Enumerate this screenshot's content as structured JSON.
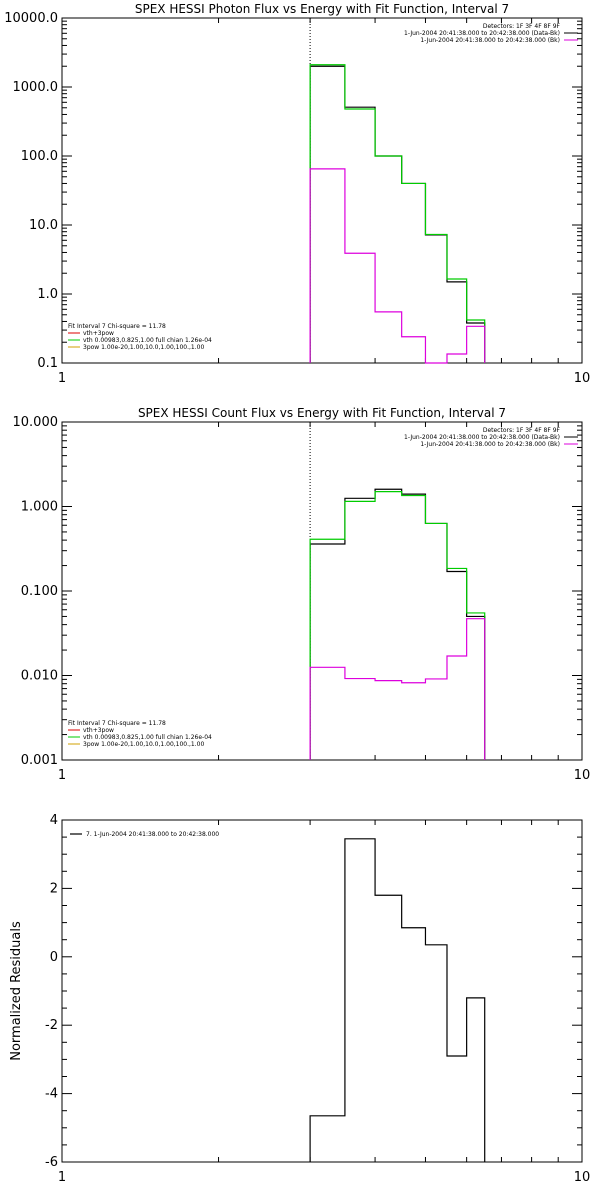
{
  "chart_data": [
    {
      "type": "line",
      "title": "SPEX HESSI Photon Flux vs Energy with Fit Function, Interval 7",
      "xscale": "log",
      "yscale": "log",
      "xlim": [
        1,
        10
      ],
      "ylim": [
        0.1,
        10000
      ],
      "x_ticks": [
        {
          "v": 1,
          "label": "1"
        },
        {
          "v": 10,
          "label": "10"
        }
      ],
      "y_ticks": [
        {
          "v": 0.1,
          "label": "0.1"
        },
        {
          "v": 1,
          "label": "1.0"
        },
        {
          "v": 10,
          "label": "10.0"
        },
        {
          "v": 100,
          "label": "100.0"
        },
        {
          "v": 1000,
          "label": "1000.0"
        },
        {
          "v": 10000,
          "label": "10000.0"
        }
      ],
      "vline_x": 3.0,
      "header_lines": [
        "Detectors: 1F 3F 4F 8F 9F",
        "1-Jun-2004 20:41:38.000 to 20:42:38.000 (Data-Bk)",
        "1-Jun-2004 20:41:38.000 to 20:42:38.000 (Bk)"
      ],
      "header_colors": [
        "",
        "#000000",
        "#dd00dd"
      ],
      "legend": {
        "title": "Fit Interval  7    Chi-square = 11.78",
        "items": [
          {
            "label": "vth+3pow",
            "color": "#dd0000"
          },
          {
            "label": "vth 0.00983,0.825,1.00   full chian 1.26e-04",
            "color": "#00cc00"
          },
          {
            "label": "3pow 1.00e-20,1.00,10.0,1.00,100.,1.00",
            "color": "#d0a000"
          }
        ]
      },
      "series": [
        {
          "color": "#000000",
          "edges": [
            3.0,
            3.5,
            4.0,
            4.5,
            5.0,
            5.5,
            6.0,
            6.5
          ],
          "values": [
            2000,
            510,
            100,
            40,
            7.2,
            1.5,
            0.38
          ]
        },
        {
          "color": "#00cc00",
          "edges": [
            3.0,
            3.5,
            4.0,
            4.5,
            5.0,
            5.5,
            6.0,
            6.5
          ],
          "values": [
            2100,
            480,
            100,
            40,
            7.3,
            1.65,
            0.42
          ]
        },
        {
          "color": "#dd00dd",
          "edges": [
            3.0,
            3.5,
            4.0,
            4.5,
            5.0,
            5.5,
            6.0,
            6.5
          ],
          "values": [
            65,
            3.9,
            0.55,
            0.24,
            0.09,
            0.135,
            0.34
          ]
        }
      ]
    },
    {
      "type": "line",
      "title": "SPEX HESSI Count Flux vs Energy with Fit Function, Interval 7",
      "xscale": "log",
      "yscale": "log",
      "xlim": [
        1,
        10
      ],
      "ylim": [
        0.001,
        10
      ],
      "x_ticks": [
        {
          "v": 1,
          "label": "1"
        },
        {
          "v": 10,
          "label": "10"
        }
      ],
      "y_ticks": [
        {
          "v": 0.001,
          "label": "0.001"
        },
        {
          "v": 0.01,
          "label": "0.010"
        },
        {
          "v": 0.1,
          "label": "0.100"
        },
        {
          "v": 1,
          "label": "1.000"
        },
        {
          "v": 10,
          "label": "10.000"
        }
      ],
      "vline_x": 3.0,
      "header_lines": [
        "Detectors: 1F 3F 4F 8F 9F",
        "1-Jun-2004 20:41:38.000 to 20:42:38.000 (Data-Bk)",
        "1-Jun-2004 20:41:38.000 to 20:42:38.000 (Bk)"
      ],
      "header_colors": [
        "",
        "#000000",
        "#dd00dd"
      ],
      "legend": {
        "title": "Fit Interval  7    Chi-square = 11.78",
        "items": [
          {
            "label": "vth+3pow",
            "color": "#dd0000"
          },
          {
            "label": "vth 0.00983,0.825,1.00   full chian 1.26e-04",
            "color": "#00cc00"
          },
          {
            "label": "3pow 1.00e-20,1.00,10.0,1.00,100.,1.00",
            "color": "#d0a000"
          }
        ]
      },
      "series": [
        {
          "color": "#000000",
          "edges": [
            3.0,
            3.5,
            4.0,
            4.5,
            5.0,
            5.5,
            6.0,
            6.5
          ],
          "values": [
            0.36,
            1.25,
            1.6,
            1.4,
            0.63,
            0.17,
            0.05
          ]
        },
        {
          "color": "#00cc00",
          "edges": [
            3.0,
            3.5,
            4.0,
            4.5,
            5.0,
            5.5,
            6.0,
            6.5
          ],
          "values": [
            0.41,
            1.15,
            1.5,
            1.35,
            0.63,
            0.185,
            0.055
          ]
        },
        {
          "color": "#dd00dd",
          "edges": [
            3.0,
            3.5,
            4.0,
            4.5,
            5.0,
            5.5,
            6.0,
            6.5
          ],
          "values": [
            0.0125,
            0.0092,
            0.0087,
            0.0082,
            0.0091,
            0.017,
            0.047
          ]
        }
      ]
    },
    {
      "type": "line",
      "title": "",
      "xscale": "log",
      "yscale": "linear",
      "xlim": [
        1,
        10
      ],
      "ylim": [
        -6,
        4
      ],
      "ylabel": "Normalized Residuals",
      "x_ticks": [
        {
          "v": 1,
          "label": "1"
        },
        {
          "v": 10,
          "label": "10"
        }
      ],
      "y_ticks": [
        {
          "v": -6,
          "label": "-6"
        },
        {
          "v": -4,
          "label": "-4"
        },
        {
          "v": -2,
          "label": "-2"
        },
        {
          "v": 0,
          "label": "0"
        },
        {
          "v": 2,
          "label": "2"
        },
        {
          "v": 4,
          "label": "4"
        }
      ],
      "legend": {
        "title": "",
        "items": [
          {
            "label": "7.  1-Jun-2004 20:41:38.000 to 20:42:38.000",
            "color": "#000000"
          }
        ]
      },
      "series": [
        {
          "color": "#000000",
          "edges": [
            3.0,
            3.5,
            4.0,
            4.5,
            5.0,
            5.5,
            6.0,
            6.5
          ],
          "values": [
            -4.65,
            3.45,
            1.8,
            0.85,
            0.35,
            -2.9,
            -1.2
          ]
        }
      ]
    }
  ]
}
